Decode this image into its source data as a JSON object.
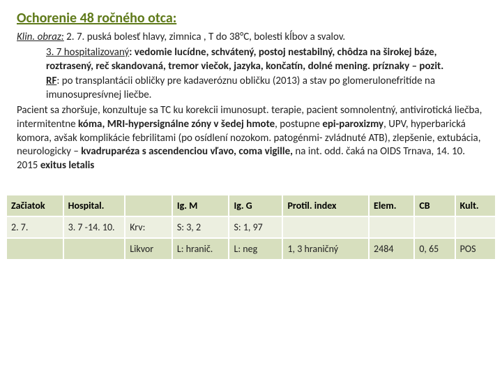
{
  "title": "Ochorenie 48 ročného otca:",
  "body": {
    "klin_label": "Klin. obraz:",
    "p1": "  2. 7. puská bolesť hlavy, zimnica , T do 38°C, bolesti kĺbov a svalov.",
    "p2a": "3. 7 hospitalizovaný",
    "p2b": ": vedomie lucídne, schvátený, postoj nestabilný, chôdza na širokej báze, roztrasený, reč skandovaná, tremor viečok, jazyka, končatín, dolné mening. príznaky – pozit.",
    "p3a": "RF",
    "p3b": ": po transplantácii obličky pre kadaveróznu obličku (2013)  a stav po glomerulonefritíde na imunosupresívnej liečbe.",
    "p4a": "Pacient sa zhoršuje, konzultuje sa TC ku korekcii imunosupt. terapie, pacient somnolentný, antivirotická liečba, intermitentne ",
    "p4b": "kóma, MRI-hypersignálne zóny v šedej hmote",
    "p4c": ", postupne ",
    "p4d": "epi-paroxizmy",
    "p4e": ", UPV, hyperbarická komora, avšak komplikácie febrilitami (po osídlení nozokom. patogénmi- zvládnuté ATB), zlepšenie, extubácia, neurologicky – ",
    "p4f": "kvadruparéza s ascendenciou vľavo, coma vigille,",
    "p4g": " na int. odd. čaká na OIDS Trnava,  14. 10. 2015  ",
    "p4h": "exitus letalis"
  },
  "table": {
    "colors": {
      "header_bg": "#d7dfbe",
      "row1_bg": "#ecefe0",
      "row2_bg": "#d7dfbe",
      "text": "#222222",
      "bold_text": "#000000"
    },
    "col_widths": [
      "70",
      "76",
      "58",
      "70",
      "66",
      "106",
      "56",
      "50",
      "50"
    ],
    "header": [
      "Začiatok",
      "Hospital.",
      "",
      "Ig. M",
      "Ig. G",
      "Protil. index",
      "Elem.",
      "CB",
      "Kult."
    ],
    "rows": [
      [
        "2. 7.",
        "3. 7 -14. 10.",
        "Krv:",
        "S: 3, 2",
        "S: 1, 97",
        "",
        "",
        "",
        ""
      ],
      [
        "",
        "",
        "Likvor",
        "L: hranič.",
        "L: neg",
        "1, 3 hraničný",
        "2484",
        "0, 65",
        "POS"
      ]
    ]
  }
}
